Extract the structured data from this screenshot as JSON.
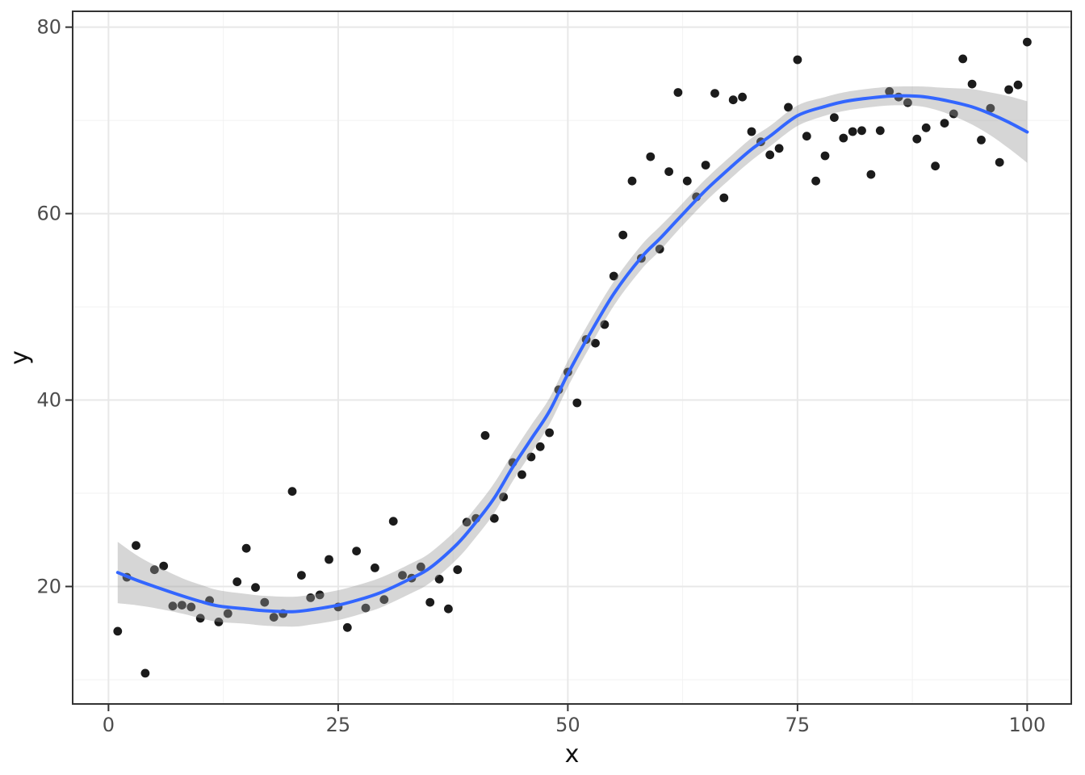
{
  "chart_data": {
    "type": "scatter",
    "title": "",
    "xlabel": "x",
    "ylabel": "y",
    "xlim": [
      -3.9,
      104.8
    ],
    "ylim": [
      7.4,
      81.7
    ],
    "x_ticks": [
      0,
      25,
      50,
      75,
      100
    ],
    "y_ticks": [
      20,
      40,
      60,
      80
    ],
    "x_minor_ticks": [
      12.5,
      37.5,
      62.5,
      87.5
    ],
    "y_minor_ticks": [
      10,
      30,
      50,
      70
    ],
    "grid": true,
    "legend_position": "none",
    "points": [
      [
        1,
        15.2
      ],
      [
        2,
        21.0
      ],
      [
        3,
        24.4
      ],
      [
        4,
        10.7
      ],
      [
        5,
        21.8
      ],
      [
        6,
        22.2
      ],
      [
        7,
        17.9
      ],
      [
        8,
        18.0
      ],
      [
        9,
        17.8
      ],
      [
        10,
        16.6
      ],
      [
        11,
        18.5
      ],
      [
        12,
        16.2
      ],
      [
        13,
        17.1
      ],
      [
        14,
        20.5
      ],
      [
        15,
        24.1
      ],
      [
        16,
        19.9
      ],
      [
        17,
        18.3
      ],
      [
        18,
        16.7
      ],
      [
        19,
        17.1
      ],
      [
        20,
        30.2
      ],
      [
        21,
        21.2
      ],
      [
        22,
        18.8
      ],
      [
        23,
        19.1
      ],
      [
        24,
        22.9
      ],
      [
        25,
        17.8
      ],
      [
        26,
        15.6
      ],
      [
        27,
        23.8
      ],
      [
        28,
        17.7
      ],
      [
        29,
        22.0
      ],
      [
        30,
        18.6
      ],
      [
        31,
        27.0
      ],
      [
        32,
        21.2
      ],
      [
        33,
        20.9
      ],
      [
        34,
        22.1
      ],
      [
        35,
        18.3
      ],
      [
        36,
        20.8
      ],
      [
        37,
        17.6
      ],
      [
        38,
        21.8
      ],
      [
        39,
        26.9
      ],
      [
        40,
        27.3
      ],
      [
        41,
        36.2
      ],
      [
        42,
        27.3
      ],
      [
        43,
        29.6
      ],
      [
        44,
        33.3
      ],
      [
        45,
        32.0
      ],
      [
        46,
        33.9
      ],
      [
        47,
        35.0
      ],
      [
        48,
        36.5
      ],
      [
        49,
        41.1
      ],
      [
        50,
        43.0
      ],
      [
        51,
        39.7
      ],
      [
        52,
        46.5
      ],
      [
        53,
        46.1
      ],
      [
        54,
        48.1
      ],
      [
        55,
        53.3
      ],
      [
        56,
        57.7
      ],
      [
        57,
        63.5
      ],
      [
        58,
        55.2
      ],
      [
        59,
        66.1
      ],
      [
        60,
        56.2
      ],
      [
        61,
        64.5
      ],
      [
        62,
        73.0
      ],
      [
        63,
        63.5
      ],
      [
        64,
        61.8
      ],
      [
        65,
        65.2
      ],
      [
        66,
        72.9
      ],
      [
        67,
        61.7
      ],
      [
        68,
        72.2
      ],
      [
        69,
        72.5
      ],
      [
        70,
        68.8
      ],
      [
        71,
        67.7
      ],
      [
        72,
        66.3
      ],
      [
        73,
        67.0
      ],
      [
        74,
        71.4
      ],
      [
        75,
        76.5
      ],
      [
        76,
        68.3
      ],
      [
        77,
        63.5
      ],
      [
        78,
        66.2
      ],
      [
        79,
        70.3
      ],
      [
        80,
        68.1
      ],
      [
        81,
        68.8
      ],
      [
        82,
        68.9
      ],
      [
        83,
        64.2
      ],
      [
        84,
        68.9
      ],
      [
        85,
        73.1
      ],
      [
        86,
        72.5
      ],
      [
        87,
        71.9
      ],
      [
        88,
        68.0
      ],
      [
        89,
        69.2
      ],
      [
        90,
        65.1
      ],
      [
        91,
        69.7
      ],
      [
        92,
        70.7
      ],
      [
        93,
        76.6
      ],
      [
        94,
        73.9
      ],
      [
        95,
        67.9
      ],
      [
        96,
        71.3
      ],
      [
        97,
        65.5
      ],
      [
        98,
        73.3
      ],
      [
        99,
        73.8
      ],
      [
        100,
        78.4
      ]
    ],
    "smooth_line": {
      "method": "loess",
      "x": [
        1,
        3,
        5,
        8,
        10,
        12,
        15,
        17,
        20,
        22,
        25,
        28,
        30,
        33,
        35,
        38,
        40,
        42,
        44,
        46,
        48,
        50,
        52,
        55,
        58,
        60,
        62,
        65,
        68,
        70,
        72,
        75,
        78,
        80,
        82,
        85,
        88,
        90,
        92,
        94,
        96,
        98,
        100
      ],
      "y": [
        21.5,
        20.7,
        20.0,
        19.0,
        18.4,
        17.9,
        17.6,
        17.4,
        17.3,
        17.5,
        18.0,
        18.8,
        19.5,
        20.9,
        22.0,
        24.6,
        26.9,
        29.5,
        32.8,
        35.8,
        38.8,
        42.8,
        46.4,
        51.4,
        55.3,
        57.3,
        59.4,
        62.5,
        65.2,
        66.9,
        68.3,
        70.5,
        71.5,
        72.0,
        72.3,
        72.6,
        72.6,
        72.35,
        71.95,
        71.45,
        70.7,
        69.8,
        68.75
      ],
      "ci_halfwidth": [
        3.3,
        2.7,
        2.3,
        1.9,
        1.8,
        1.7,
        1.6,
        1.6,
        1.6,
        1.6,
        1.6,
        1.6,
        1.6,
        1.6,
        1.6,
        1.6,
        1.6,
        1.6,
        1.5,
        1.5,
        1.4,
        1.4,
        1.4,
        1.3,
        1.3,
        1.3,
        1.2,
        1.2,
        1.2,
        1.2,
        1.1,
        1.1,
        1.0,
        1.0,
        1.0,
        1.0,
        1.05,
        1.2,
        1.5,
        1.9,
        2.3,
        2.8,
        3.3
      ]
    },
    "colors": {
      "point": "#1b1b1b",
      "smooth_line": "#3366ff",
      "ribbon": "#999999",
      "ribbon_opacity": 0.4,
      "panel_background": "#ffffff",
      "panel_border": "#333333",
      "grid_major": "#e8e8e8",
      "grid_minor": "#f2f2f2",
      "tick_mark": "#333333",
      "axis_text": "#4d4d4d",
      "axis_title": "#111111"
    }
  }
}
